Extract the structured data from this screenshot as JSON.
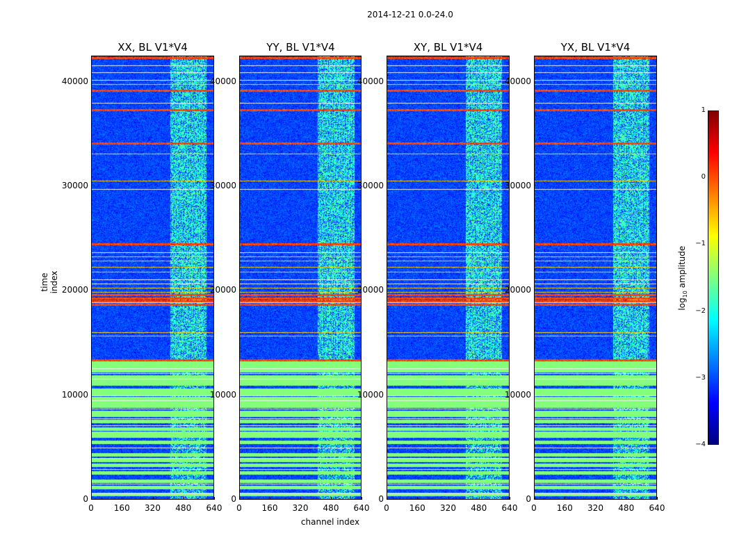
{
  "chart_data": {
    "type": "heatmap",
    "suptitle": "2014-12-21 0.0-24.0",
    "xlabel": "channel index",
    "ylabel": "time index",
    "xlim": [
      0,
      640
    ],
    "ylim": [
      0,
      42500
    ],
    "xticks": [
      "0",
      "160",
      "320",
      "480",
      "640"
    ],
    "xtick_values": [
      0,
      160,
      320,
      480,
      640
    ],
    "yticks": [
      "0",
      "10000",
      "20000",
      "30000",
      "40000"
    ],
    "ytick_values": [
      0,
      10000,
      20000,
      30000,
      40000
    ],
    "panels": [
      {
        "title": "XX, BL V1*V4",
        "band": [
          410,
          600
        ]
      },
      {
        "title": "YY, BL V1*V4",
        "band": [
          410,
          600
        ]
      },
      {
        "title": "XY, BL V1*V4",
        "band": [
          410,
          600
        ]
      },
      {
        "title": "YX, BL V1*V4",
        "band": [
          410,
          600
        ]
      }
    ],
    "colorbar": {
      "label": "log10 amplitude",
      "colormap": "jet",
      "range": [
        -4,
        1
      ],
      "ticks": [
        "1",
        "0",
        "−1",
        "−2",
        "−3",
        "−4"
      ],
      "tick_values": [
        1,
        0,
        -1,
        -2,
        -3,
        -4
      ]
    },
    "hot_rows": [
      13400,
      18700,
      19000,
      19300,
      19600,
      24500,
      34100,
      37300,
      39200,
      42300
    ],
    "warm_rows": [
      15700,
      16000,
      19900,
      20300,
      21800,
      22300,
      22900,
      23300,
      30500,
      33100,
      39800
    ],
    "flag_rows": [
      500,
      1200,
      1800,
      2600,
      3300,
      3800,
      4300,
      5500,
      6100,
      6400,
      6800,
      7500,
      8100,
      8400,
      9000,
      9300,
      9700,
      10200,
      10500,
      11100,
      11400,
      11800,
      12400,
      12800,
      13100
    ],
    "white_rows": [
      600,
      1500,
      2900,
      4000,
      5000,
      7100,
      7800,
      8700,
      9500,
      10000,
      11600,
      12100,
      12600,
      18900,
      20700,
      21100,
      23700,
      29700,
      38000,
      40200,
      40900,
      41600
    ]
  }
}
